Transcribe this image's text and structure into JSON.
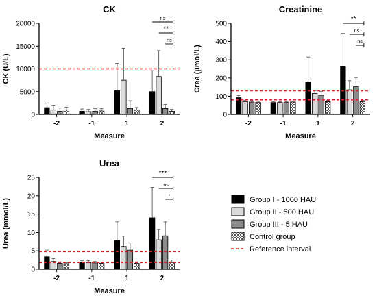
{
  "chart_data": [
    {
      "type": "bar",
      "title": "CK",
      "xlabel": "Measure",
      "ylabel": "CK (U/L)",
      "categories": [
        "-2",
        "-1",
        "1",
        "2"
      ],
      "ylim": [
        0,
        20000
      ],
      "yticks": [
        "0",
        "5000",
        "10000",
        "15000",
        "20000"
      ],
      "reference_lines": [
        10000
      ],
      "series": [
        {
          "values": [
            1500,
            700,
            5200,
            5000
          ],
          "errors": [
            1000,
            500,
            6000,
            4600
          ]
        },
        {
          "values": [
            1000,
            600,
            7500,
            8300
          ],
          "errors": [
            900,
            500,
            7000,
            5700
          ]
        },
        {
          "values": [
            700,
            700,
            1300,
            1300
          ],
          "errors": [
            700,
            600,
            1700,
            900
          ]
        },
        {
          "values": [
            1000,
            750,
            1000,
            700
          ],
          "errors": [
            600,
            500,
            500,
            400
          ]
        }
      ],
      "significance": [
        {
          "label": "ns",
          "from_series": 0,
          "to_series": 3,
          "category": "2"
        },
        {
          "label": "**",
          "from_series": 1,
          "to_series": 3,
          "category": "2"
        },
        {
          "label": "ns",
          "from_series": 2,
          "to_series": 3,
          "category": "2"
        }
      ]
    },
    {
      "type": "bar",
      "title": "Creatinine",
      "xlabel": "Measure",
      "ylabel": "Crea (µmol/L)",
      "categories": [
        "-2",
        "-1",
        "1",
        "2"
      ],
      "ylim": [
        0,
        500
      ],
      "yticks": [
        "0",
        "100",
        "200",
        "300",
        "400",
        "500"
      ],
      "reference_lines": [
        80,
        130
      ],
      "series": [
        {
          "values": [
            92,
            65,
            178,
            262
          ],
          "errors": [
            12,
            5,
            137,
            183
          ]
        },
        {
          "values": [
            70,
            65,
            115,
            135
          ],
          "errors": [
            8,
            5,
            15,
            50
          ]
        },
        {
          "values": [
            68,
            65,
            105,
            152
          ],
          "errors": [
            7,
            5,
            20,
            50
          ]
        },
        {
          "values": [
            65,
            68,
            70,
            70
          ],
          "errors": [
            6,
            5,
            6,
            7
          ]
        }
      ],
      "significance": [
        {
          "label": "**",
          "from_series": 0,
          "to_series": 3,
          "category": "2"
        },
        {
          "label": "ns",
          "from_series": 1,
          "to_series": 3,
          "category": "2"
        },
        {
          "label": "ns",
          "from_series": 2,
          "to_series": 3,
          "category": "2"
        }
      ]
    },
    {
      "type": "bar",
      "title": "Urea",
      "xlabel": "Measure",
      "ylabel": "Urea (mmol/L)",
      "categories": [
        "-2",
        "-1",
        "1",
        "2"
      ],
      "ylim": [
        0,
        25
      ],
      "yticks": [
        "0",
        "5",
        "10",
        "15",
        "20",
        "25"
      ],
      "reference_lines": [
        1.8,
        4.8
      ],
      "series": [
        {
          "values": [
            3.4,
            1.8,
            7.8,
            14
          ],
          "errors": [
            1.8,
            0.5,
            5.1,
            8.3
          ]
        },
        {
          "values": [
            2.1,
            1.8,
            6.2,
            8.0
          ],
          "errors": [
            0.8,
            0.5,
            2.8,
            2.8
          ]
        },
        {
          "values": [
            1.6,
            1.7,
            5.2,
            9.1
          ],
          "errors": [
            0.4,
            0.4,
            2.0,
            3.8
          ]
        },
        {
          "values": [
            1.5,
            1.6,
            1.6,
            2.0
          ],
          "errors": [
            0.3,
            0.3,
            0.4,
            0.5
          ]
        }
      ],
      "significance": [
        {
          "label": "***",
          "from_series": 0,
          "to_series": 3,
          "category": "2"
        },
        {
          "label": "ns",
          "from_series": 1,
          "to_series": 3,
          "category": "2"
        },
        {
          "label": "*",
          "from_series": 2,
          "to_series": 3,
          "category": "2"
        }
      ]
    }
  ],
  "legend": {
    "items": [
      {
        "label": "Group I - 1000 HAU",
        "fill": "#000000"
      },
      {
        "label": "Group II - 500 HAU",
        "fill": "#d9d9d9"
      },
      {
        "label": "Group III - 5 HAU",
        "fill": "#8c8c8c"
      },
      {
        "label": "Control group",
        "fill": "checker"
      }
    ],
    "reference_label": "Reference interval",
    "reference_color": "#e02020"
  }
}
